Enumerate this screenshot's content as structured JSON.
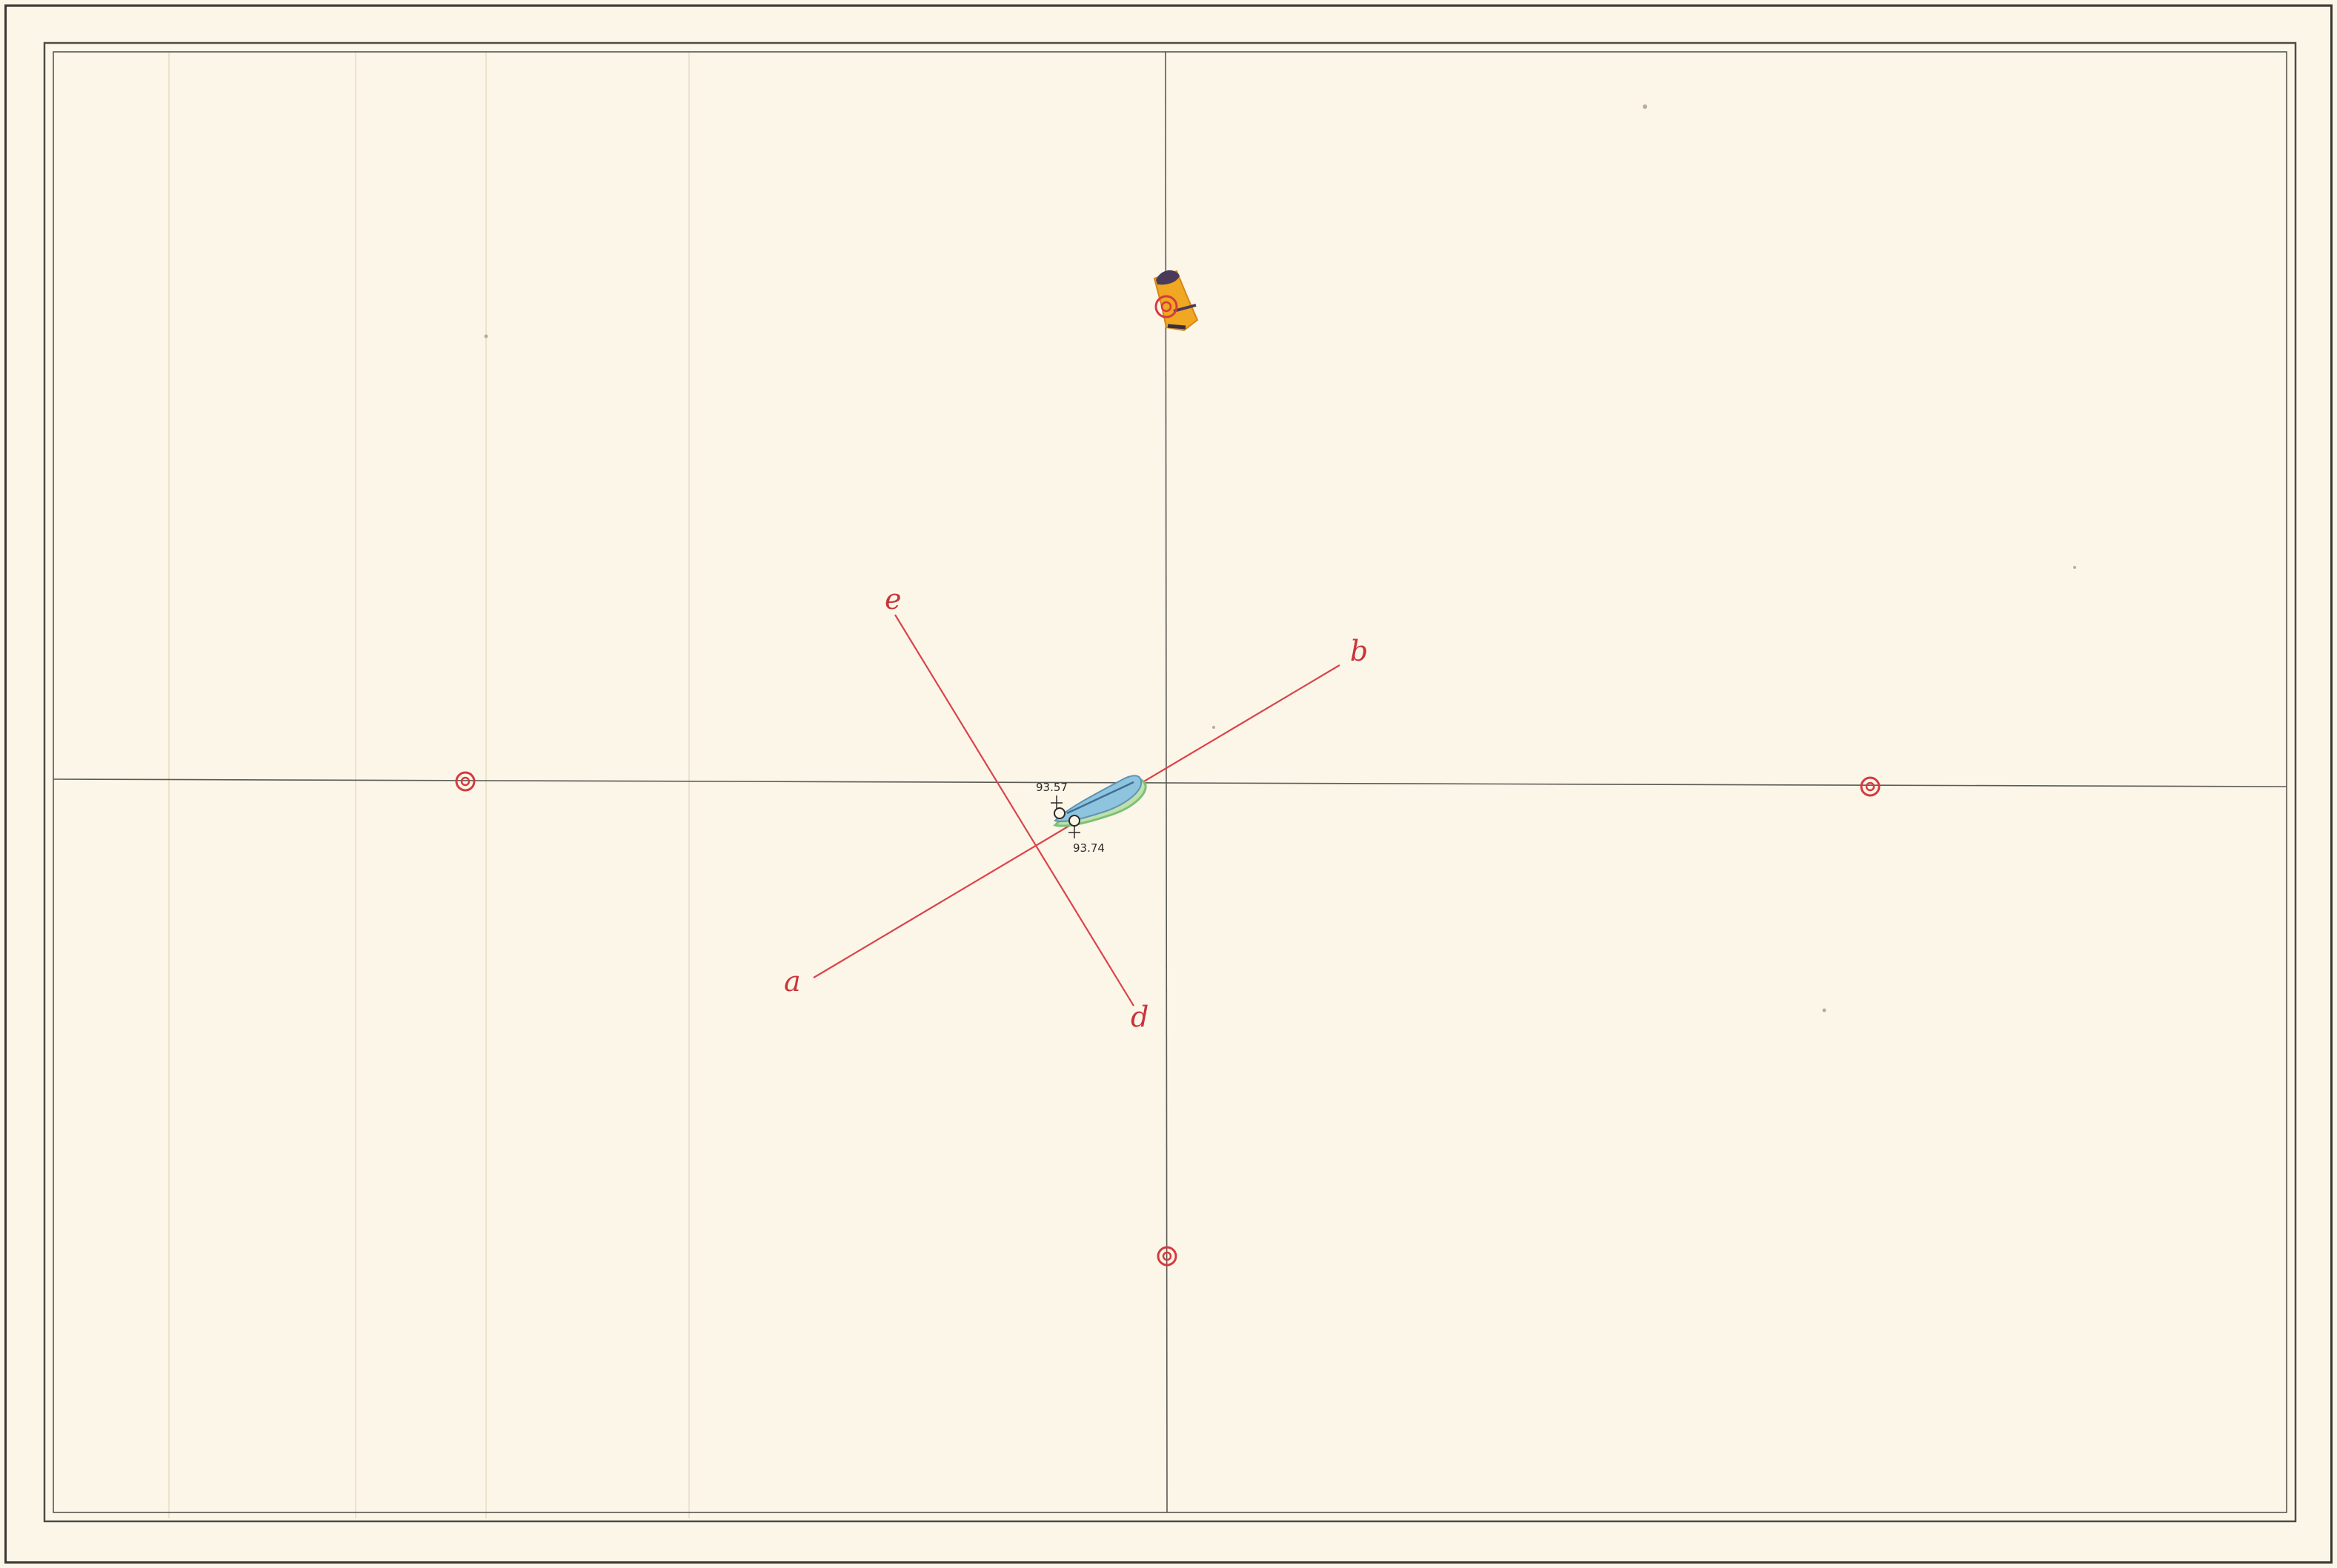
{
  "plan": {
    "section_lines": {
      "line_ab": {
        "start_label": "a",
        "end_label": "b"
      },
      "line_ed": {
        "start_label": "e",
        "end_label": "d"
      }
    },
    "spot_heights": {
      "upper": "93.57",
      "lower": "93.74"
    },
    "feature_colors": {
      "section_line": "#d9444a",
      "marker": "#d63a3f",
      "water_body": "#7fb9d6",
      "water_edge": "#7cc07a",
      "landmark_fill": "#f0a822",
      "landmark_dark": "#4a3a5a",
      "grid_line": "#5a5954",
      "frame_line": "#4e4c46"
    },
    "markers": [
      {
        "name": "marker-top",
        "icon": "double-circle-marker-icon"
      },
      {
        "name": "marker-left",
        "icon": "double-circle-marker-icon"
      },
      {
        "name": "marker-right",
        "icon": "double-circle-marker-icon"
      },
      {
        "name": "marker-bottom",
        "icon": "double-circle-marker-icon"
      }
    ]
  }
}
